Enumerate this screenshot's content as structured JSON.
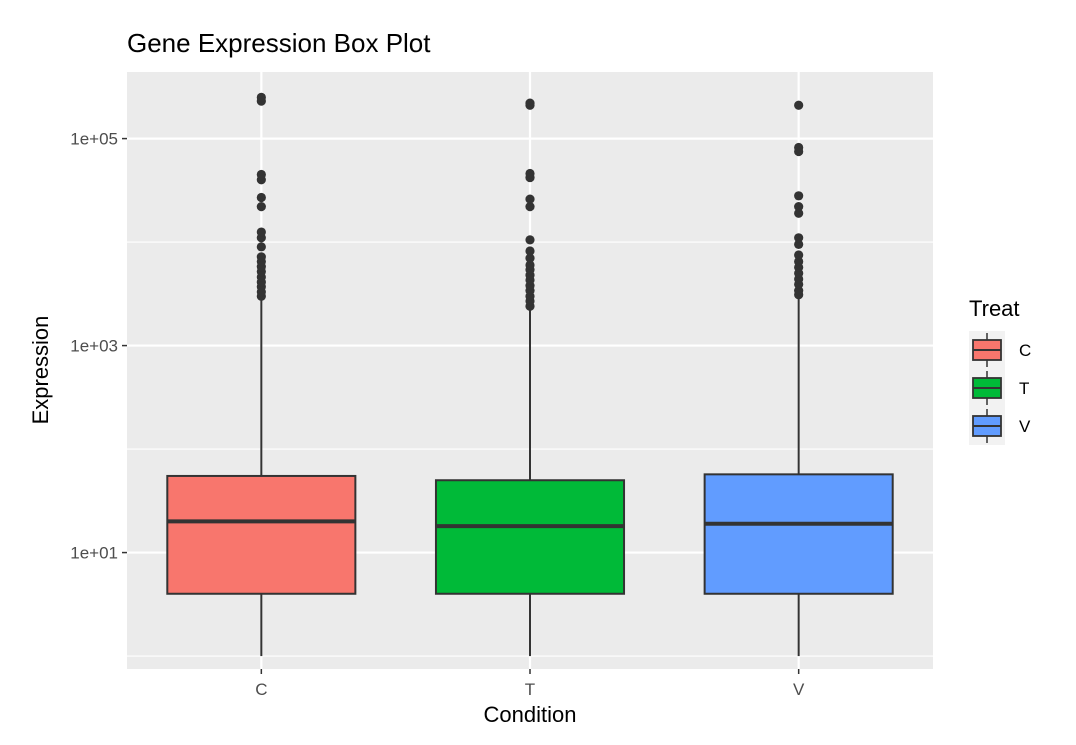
{
  "chart_data": {
    "type": "box",
    "title": "Gene Expression Box Plot",
    "xlabel": "Condition",
    "ylabel": "Expression",
    "y_scale": "log10",
    "ylim": [
      0.75,
      440000
    ],
    "y_ticks": [
      {
        "value": 10,
        "label": "1e+01"
      },
      {
        "value": 1000,
        "label": "1e+03"
      },
      {
        "value": 100000,
        "label": "1e+05"
      }
    ],
    "y_minor_ticks": [
      1,
      100,
      10000
    ],
    "categories": [
      "C",
      "T",
      "V"
    ],
    "grid": true,
    "legend": {
      "title": "Treat",
      "position": "right",
      "entries": [
        {
          "label": "C",
          "color": "#F8766D"
        },
        {
          "label": "T",
          "color": "#00BA38"
        },
        {
          "label": "V",
          "color": "#619CFF"
        }
      ]
    },
    "series": [
      {
        "category": "C",
        "color": "#F8766D",
        "whisker_low": 1,
        "q1": 4,
        "median": 20,
        "q3": 55,
        "whisker_high": 2800,
        "outliers": [
          3000,
          3300,
          3700,
          4100,
          4600,
          5200,
          5800,
          6500,
          7200,
          9000,
          11000,
          12500,
          22000,
          27000,
          40000,
          45000,
          230000,
          250000
        ]
      },
      {
        "category": "T",
        "color": "#00BA38",
        "whisker_low": 1,
        "q1": 4,
        "median": 18,
        "q3": 50,
        "whisker_high": 2200,
        "outliers": [
          2400,
          2700,
          3000,
          3400,
          3800,
          4300,
          4800,
          5400,
          6000,
          7000,
          8200,
          10500,
          22000,
          26000,
          42000,
          46000,
          210000,
          220000
        ]
      },
      {
        "category": "V",
        "color": "#619CFF",
        "whisker_low": 1,
        "q1": 4,
        "median": 19,
        "q3": 57,
        "whisker_high": 2900,
        "outliers": [
          3100,
          3400,
          3900,
          4400,
          5000,
          5700,
          6500,
          7500,
          9500,
          11000,
          19000,
          22000,
          28000,
          75000,
          82000,
          210000
        ]
      }
    ]
  }
}
